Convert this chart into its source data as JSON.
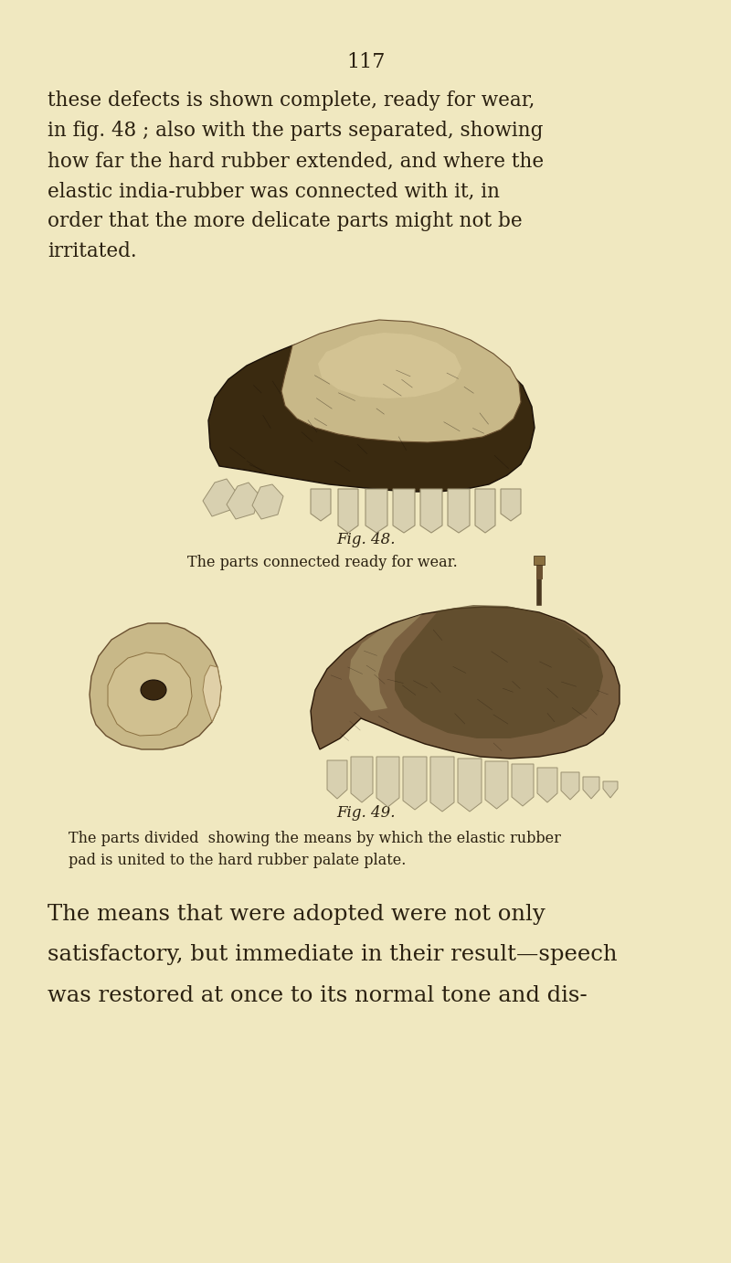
{
  "background_color": "#f0e8c0",
  "page_number": "117",
  "text_color": "#2a2010",
  "body_text_1_lines": [
    "these defects is shown complete, ready for wear,",
    "in fig. 48 ; also with the parts separated, showing",
    "how far the hard rubber extended, and where the",
    "elastic india-rubber was connected with it, in",
    "order that the more delicate parts might not be",
    "irritated."
  ],
  "fig48_label": "Fig. 48.",
  "fig48_caption": "The parts connected ready for wear.",
  "fig49_label": "Fig. 49.",
  "fig49_caption_line1": "The parts divided  showing the means by which the elastic rubber",
  "fig49_caption_line2": "pad is united to the hard rubber palate plate.",
  "body_text_2_lines": [
    "The means that were adopted were not only",
    "satisfactory, but immediate in their result—speech",
    "was restored at once to its normal tone and dis-"
  ],
  "img_bg": "#f0e8c0",
  "dark_brown": "#3a2a10",
  "mid_brown": "#7a6040",
  "light_tan": "#c8b888",
  "cream": "#e8dfc0",
  "tooth_color": "#d8d0b0",
  "shadow": "#5a4828"
}
